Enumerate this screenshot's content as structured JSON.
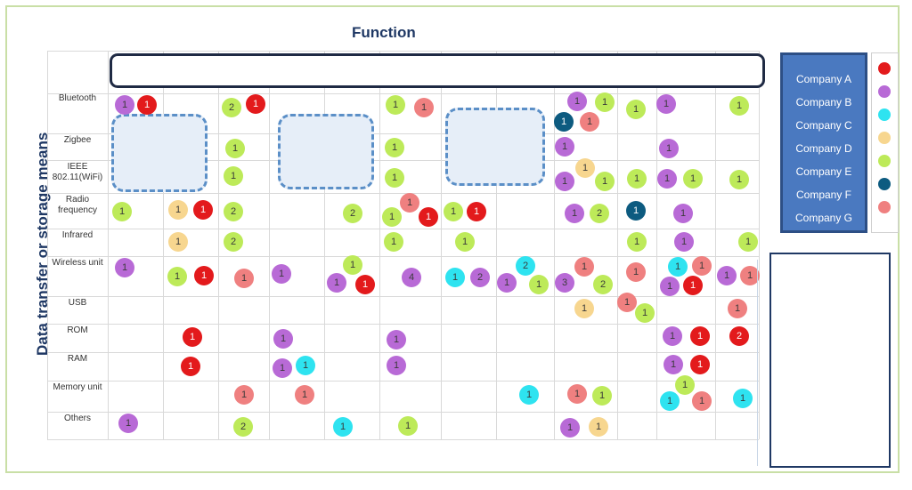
{
  "titles": {
    "function": "Function",
    "y": "Data transfer or storage means"
  },
  "rows": [
    "Bluetooth",
    "Zigbee",
    "IEEE 802.11(WiFi)",
    "Radio frequency",
    "Infrared",
    "Wireless unit",
    "USB",
    "ROM",
    "RAM",
    "Memory unit",
    "Others"
  ],
  "legend": [
    {
      "company": "Company A",
      "color": "#e31a1c",
      "icon": "red-dot"
    },
    {
      "company": "Company B",
      "color": "#b86ad6",
      "icon": "purple-dot"
    },
    {
      "company": "Company C",
      "color": "#2ee3f0",
      "icon": "cyan-dot"
    },
    {
      "company": "Company D",
      "color": "#f7d68f",
      "icon": "beige-dot"
    },
    {
      "company": "Company E",
      "color": "#bdea59",
      "icon": "lime-dot"
    },
    {
      "company": "Company F",
      "color": "#0d5b80",
      "icon": "teal-dot"
    },
    {
      "company": "Company G",
      "color": "#ef8080",
      "icon": "pink-dot"
    }
  ],
  "markers": [
    {
      "row": 0,
      "col": 0,
      "company": "B",
      "count": "1"
    },
    {
      "row": 0,
      "col": 0,
      "company": "A",
      "count": "1"
    },
    {
      "row": 0,
      "col": 2,
      "company": "E",
      "count": "2"
    },
    {
      "row": 0,
      "col": 2,
      "company": "A",
      "count": "1"
    },
    {
      "row": 0,
      "col": 5,
      "company": "E",
      "count": "1"
    },
    {
      "row": 0,
      "col": 5,
      "company": "G",
      "count": "1"
    },
    {
      "row": 0,
      "col": 8,
      "company": "B",
      "count": "1"
    },
    {
      "row": 0,
      "col": 8,
      "company": "E",
      "count": "1"
    },
    {
      "row": 0,
      "col": 8,
      "company": "F",
      "count": "1"
    },
    {
      "row": 0,
      "col": 8,
      "company": "G",
      "count": "1"
    },
    {
      "row": 0,
      "col": 9,
      "company": "E",
      "count": "1"
    },
    {
      "row": 0,
      "col": 10,
      "company": "B",
      "count": "1"
    },
    {
      "row": 0,
      "col": 11,
      "company": "E",
      "count": "1"
    },
    {
      "row": 1,
      "col": 2,
      "company": "E",
      "count": "1"
    },
    {
      "row": 1,
      "col": 5,
      "company": "E",
      "count": "1"
    },
    {
      "row": 1,
      "col": 8,
      "company": "B",
      "count": "1"
    },
    {
      "row": 1,
      "col": 10,
      "company": "B",
      "count": "1"
    },
    {
      "row": 2,
      "col": 2,
      "company": "E",
      "count": "1"
    },
    {
      "row": 2,
      "col": 5,
      "company": "E",
      "count": "1"
    },
    {
      "row": 2,
      "col": 8,
      "company": "D",
      "count": "1"
    },
    {
      "row": 2,
      "col": 8,
      "company": "B",
      "count": "1"
    },
    {
      "row": 2,
      "col": 8,
      "company": "E",
      "count": "1"
    },
    {
      "row": 2,
      "col": 9,
      "company": "E",
      "count": "1"
    },
    {
      "row": 2,
      "col": 10,
      "company": "B",
      "count": "1"
    },
    {
      "row": 2,
      "col": 10,
      "company": "E",
      "count": "1"
    },
    {
      "row": 2,
      "col": 11,
      "company": "E",
      "count": "1"
    },
    {
      "row": 3,
      "col": 0,
      "company": "E",
      "count": "1"
    },
    {
      "row": 3,
      "col": 1,
      "company": "D",
      "count": "1"
    },
    {
      "row": 3,
      "col": 1,
      "company": "A",
      "count": "1"
    },
    {
      "row": 3,
      "col": 2,
      "company": "E",
      "count": "2"
    },
    {
      "row": 3,
      "col": 4,
      "company": "E",
      "count": "2"
    },
    {
      "row": 3,
      "col": 5,
      "company": "G",
      "count": "1"
    },
    {
      "row": 3,
      "col": 5,
      "company": "E",
      "count": "1"
    },
    {
      "row": 3,
      "col": 5,
      "company": "A",
      "count": "1"
    },
    {
      "row": 3,
      "col": 6,
      "company": "E",
      "count": "1"
    },
    {
      "row": 3,
      "col": 6,
      "company": "A",
      "count": "1"
    },
    {
      "row": 3,
      "col": 8,
      "company": "B",
      "count": "1"
    },
    {
      "row": 3,
      "col": 8,
      "company": "E",
      "count": "2"
    },
    {
      "row": 3,
      "col": 9,
      "company": "F",
      "count": "1"
    },
    {
      "row": 3,
      "col": 10,
      "company": "B",
      "count": "1"
    },
    {
      "row": 4,
      "col": 1,
      "company": "D",
      "count": "1"
    },
    {
      "row": 4,
      "col": 2,
      "company": "E",
      "count": "2"
    },
    {
      "row": 4,
      "col": 5,
      "company": "E",
      "count": "1"
    },
    {
      "row": 4,
      "col": 6,
      "company": "E",
      "count": "1"
    },
    {
      "row": 4,
      "col": 9,
      "company": "E",
      "count": "1"
    },
    {
      "row": 4,
      "col": 10,
      "company": "B",
      "count": "1"
    },
    {
      "row": 4,
      "col": 11,
      "company": "E",
      "count": "1"
    },
    {
      "row": 5,
      "col": 0,
      "company": "B",
      "count": "1"
    },
    {
      "row": 5,
      "col": 1,
      "company": "E",
      "count": "1"
    },
    {
      "row": 5,
      "col": 1,
      "company": "A",
      "count": "1"
    },
    {
      "row": 5,
      "col": 2,
      "company": "G",
      "count": "1"
    },
    {
      "row": 5,
      "col": 3,
      "company": "B",
      "count": "1"
    },
    {
      "row": 5,
      "col": 4,
      "company": "E",
      "count": "1"
    },
    {
      "row": 5,
      "col": 4,
      "company": "B",
      "count": "1"
    },
    {
      "row": 5,
      "col": 4,
      "company": "A",
      "count": "1"
    },
    {
      "row": 5,
      "col": 5,
      "company": "B",
      "count": "4"
    },
    {
      "row": 5,
      "col": 6,
      "company": "C",
      "count": "1"
    },
    {
      "row": 5,
      "col": 6,
      "company": "B",
      "count": "2"
    },
    {
      "row": 5,
      "col": 7,
      "company": "C",
      "count": "2"
    },
    {
      "row": 5,
      "col": 7,
      "company": "B",
      "count": "1"
    },
    {
      "row": 5,
      "col": 7,
      "company": "E",
      "count": "1"
    },
    {
      "row": 5,
      "col": 8,
      "company": "G",
      "count": "1"
    },
    {
      "row": 5,
      "col": 8,
      "company": "B",
      "count": "3"
    },
    {
      "row": 5,
      "col": 8,
      "company": "E",
      "count": "2"
    },
    {
      "row": 5,
      "col": 9,
      "company": "G",
      "count": "1"
    },
    {
      "row": 5,
      "col": 10,
      "company": "C",
      "count": "1"
    },
    {
      "row": 5,
      "col": 10,
      "company": "G",
      "count": "1"
    },
    {
      "row": 5,
      "col": 10,
      "company": "B",
      "count": "1"
    },
    {
      "row": 5,
      "col": 10,
      "company": "A",
      "count": "1"
    },
    {
      "row": 5,
      "col": 11,
      "company": "B",
      "count": "1"
    },
    {
      "row": 5,
      "col": 11,
      "company": "G",
      "count": "1"
    },
    {
      "row": 6,
      "col": 8,
      "company": "D",
      "count": "1"
    },
    {
      "row": 6,
      "col": 9,
      "company": "G",
      "count": "1"
    },
    {
      "row": 6,
      "col": 9,
      "company": "E",
      "count": "1"
    },
    {
      "row": 6,
      "col": 11,
      "company": "G",
      "count": "1"
    },
    {
      "row": 7,
      "col": 1,
      "company": "A",
      "count": "1"
    },
    {
      "row": 7,
      "col": 3,
      "company": "B",
      "count": "1"
    },
    {
      "row": 7,
      "col": 5,
      "company": "B",
      "count": "1"
    },
    {
      "row": 7,
      "col": 10,
      "company": "B",
      "count": "1"
    },
    {
      "row": 7,
      "col": 10,
      "company": "A",
      "count": "1"
    },
    {
      "row": 7,
      "col": 11,
      "company": "A",
      "count": "2"
    },
    {
      "row": 8,
      "col": 1,
      "company": "A",
      "count": "1"
    },
    {
      "row": 8,
      "col": 3,
      "company": "B",
      "count": "1"
    },
    {
      "row": 8,
      "col": 3,
      "company": "C",
      "count": "1"
    },
    {
      "row": 8,
      "col": 5,
      "company": "B",
      "count": "1"
    },
    {
      "row": 8,
      "col": 10,
      "company": "B",
      "count": "1"
    },
    {
      "row": 8,
      "col": 10,
      "company": "A",
      "count": "1"
    },
    {
      "row": 9,
      "col": 2,
      "company": "G",
      "count": "1"
    },
    {
      "row": 9,
      "col": 3,
      "company": "G",
      "count": "1"
    },
    {
      "row": 9,
      "col": 7,
      "company": "C",
      "count": "1"
    },
    {
      "row": 9,
      "col": 8,
      "company": "G",
      "count": "1"
    },
    {
      "row": 9,
      "col": 8,
      "company": "E",
      "count": "1"
    },
    {
      "row": 9,
      "col": 10,
      "company": "E",
      "count": "1"
    },
    {
      "row": 9,
      "col": 10,
      "company": "C",
      "count": "1"
    },
    {
      "row": 9,
      "col": 10,
      "company": "G",
      "count": "1"
    },
    {
      "row": 9,
      "col": 11,
      "company": "C",
      "count": "1"
    },
    {
      "row": 10,
      "col": 0,
      "company": "B",
      "count": "1"
    },
    {
      "row": 10,
      "col": 2,
      "company": "E",
      "count": "2"
    },
    {
      "row": 10,
      "col": 4,
      "company": "C",
      "count": "1"
    },
    {
      "row": 10,
      "col": 5,
      "company": "E",
      "count": "1"
    },
    {
      "row": 10,
      "col": 8,
      "company": "B",
      "count": "1"
    },
    {
      "row": 10,
      "col": 8,
      "company": "D",
      "count": "1"
    }
  ]
}
